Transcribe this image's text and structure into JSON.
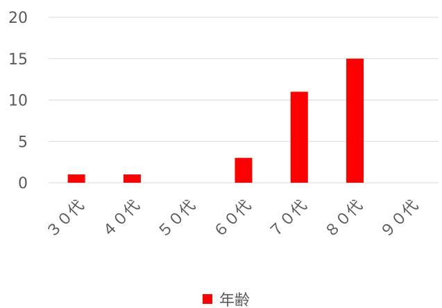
{
  "chart_data": {
    "type": "bar",
    "categories": [
      "３０代",
      "４０代",
      "５０代",
      "６０代",
      "７０代",
      "８０代",
      "９０代"
    ],
    "series": [
      {
        "name": "年齢",
        "values": [
          1,
          1,
          0,
          3,
          11,
          15,
          0
        ],
        "color": "#ff0000"
      }
    ],
    "ylim": [
      0,
      20
    ],
    "yticks": [
      0,
      5,
      10,
      15,
      20
    ],
    "grid": true,
    "legend_position": "bottom"
  }
}
